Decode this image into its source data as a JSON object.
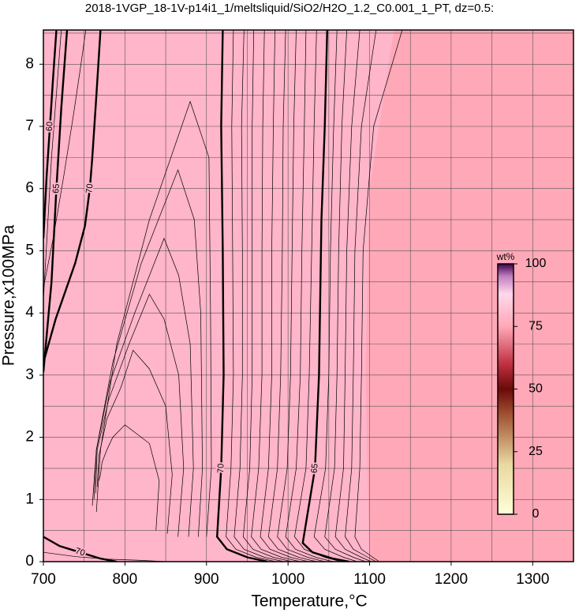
{
  "chart_data": {
    "type": "contour",
    "title": "2018-1VGP_18-1V-p14i1_1/meltsliquid/SiO2/H2O_1.2_C0.001_1_PT, dz=0.5:",
    "xlabel": "Temperature,°C",
    "ylabel": "Pressure,x100MPa",
    "xlim": [
      700,
      1350
    ],
    "ylim": [
      0,
      8.55
    ],
    "xticks": [
      700,
      800,
      900,
      1000,
      1100,
      1200,
      1300
    ],
    "yticks": [
      0,
      1,
      2,
      3,
      4,
      5,
      6,
      7,
      8
    ],
    "xgrid": [
      750,
      800,
      850,
      900,
      950,
      1000,
      1050,
      1100,
      1150,
      1200,
      1250,
      1300
    ],
    "ygrid": [
      0.5,
      1,
      1.5,
      2,
      2.5,
      3,
      3.5,
      4,
      4.5,
      5,
      5.5,
      6,
      6.5,
      7,
      7.5,
      8,
      8.5
    ],
    "background_color": "#ffa8b8",
    "regions": [
      {
        "color": "#ffb5ca",
        "T": [
          700,
          1100,
          1095,
          1100,
          1130,
          700
        ],
        "P": [
          0,
          0,
          3,
          6,
          8.55,
          8.55
        ]
      }
    ],
    "colorbar": {
      "label": "wt%",
      "lim": [
        0,
        100
      ],
      "ticks": [
        0,
        25,
        50,
        75,
        100
      ],
      "stops": [
        [
          0,
          "#ffffd8"
        ],
        [
          20,
          "#e8d8a0"
        ],
        [
          40,
          "#a05030"
        ],
        [
          50,
          "#6a0a0a"
        ],
        [
          60,
          "#c03040"
        ],
        [
          75,
          "#ffa8b8"
        ],
        [
          88,
          "#ffd8ec"
        ],
        [
          95,
          "#c080c0"
        ],
        [
          100,
          "#40004a"
        ]
      ]
    },
    "contours": [
      {
        "level": 70,
        "T": [
          920,
          918,
          920,
          921,
          918,
          913,
          925,
          950,
          975
        ],
        "P": [
          8.55,
          7,
          5,
          3,
          1.5,
          0.4,
          0.2,
          0.07,
          0
        ]
      },
      {
        "level": 69.5,
        "T": [
          933,
          931,
          932,
          933,
          930,
          924,
          936,
          961,
          985
        ],
        "P": [
          8.55,
          7,
          5,
          3,
          1.5,
          0.4,
          0.2,
          0.07,
          0
        ]
      },
      {
        "level": 69,
        "T": [
          946,
          943,
          944,
          944,
          941,
          934,
          946,
          971,
          995
        ],
        "P": [
          8.55,
          7,
          5,
          3,
          1.5,
          0.4,
          0.2,
          0.07,
          0
        ]
      },
      {
        "level": 68.5,
        "T": [
          958,
          956,
          956,
          956,
          953,
          945,
          957,
          982,
          1005
        ],
        "P": [
          8.55,
          7,
          5,
          3,
          1.5,
          0.4,
          0.2,
          0.07,
          0
        ]
      },
      {
        "level": 68,
        "T": [
          971,
          969,
          968,
          968,
          964,
          955,
          967,
          992,
          1015
        ],
        "P": [
          8.55,
          7,
          5,
          3,
          1.5,
          0.4,
          0.2,
          0.07,
          0
        ]
      },
      {
        "level": 67.5,
        "T": [
          984,
          982,
          980,
          980,
          976,
          966,
          978,
          1003,
          1025
        ],
        "P": [
          8.55,
          7,
          5,
          3,
          1.5,
          0.4,
          0.2,
          0.07,
          0
        ]
      },
      {
        "level": 67,
        "T": [
          997,
          994,
          993,
          991,
          987,
          976,
          988,
          1013,
          1035
        ],
        "P": [
          8.55,
          7,
          5,
          3,
          1.5,
          0.4,
          0.2,
          0.07,
          0
        ]
      },
      {
        "level": 66.5,
        "T": [
          1010,
          1007,
          1005,
          1003,
          999,
          987,
          999,
          1024,
          1045
        ],
        "P": [
          8.55,
          7,
          5,
          3,
          1.5,
          0.4,
          0.2,
          0.07,
          0
        ]
      },
      {
        "level": 66,
        "T": [
          1022,
          1020,
          1017,
          1015,
          1010,
          997,
          1009,
          1034,
          1055
        ],
        "P": [
          8.55,
          7,
          5,
          3,
          1.5,
          0.4,
          0.2,
          0.07,
          0
        ]
      },
      {
        "level": 65.5,
        "T": [
          1035,
          1032,
          1029,
          1026,
          1022,
          1008,
          1020,
          1045,
          1065
        ],
        "P": [
          8.55,
          7,
          5,
          3,
          1.5,
          0.4,
          0.2,
          0.07,
          0
        ]
      },
      {
        "level": 65,
        "T": [
          1048,
          1045,
          1041,
          1038,
          1033,
          1018,
          1030,
          1055,
          1075
        ],
        "P": [
          8.55,
          7,
          5.5,
          3,
          1.5,
          0.3,
          0.15,
          0.05,
          0
        ]
      },
      {
        "level": 64.5,
        "T": [
          1060,
          1056,
          1052,
          1050,
          1046,
          1032,
          1045,
          1068,
          1085
        ],
        "P": [
          8.55,
          7,
          5,
          3,
          1.5,
          0.4,
          0.2,
          0.07,
          0
        ]
      },
      {
        "level": 64,
        "T": [
          1072,
          1066,
          1062,
          1060,
          1057,
          1045,
          1058,
          1080,
          1095
        ],
        "P": [
          8.55,
          7,
          5,
          3,
          1.5,
          0.4,
          0.2,
          0.07,
          0
        ]
      },
      {
        "level": 63.5,
        "T": [
          1088,
          1078,
          1072,
          1070,
          1068,
          1058,
          1070,
          1090,
          1102
        ],
        "P": [
          8.55,
          7,
          5,
          3,
          1.5,
          0.4,
          0.2,
          0.07,
          0
        ]
      },
      {
        "level": 63,
        "T": [
          1108,
          1090,
          1082,
          1080,
          1078,
          1070,
          1080,
          1098,
          1108
        ],
        "P": [
          8.55,
          7,
          5,
          3,
          1.5,
          0.4,
          0.2,
          0.07,
          0
        ]
      },
      {
        "level": 62.5,
        "T": [
          1140,
          1105,
          1092,
          1090,
          1088,
          1082,
          1090,
          1104,
          1112
        ],
        "P": [
          8.55,
          7,
          5,
          3,
          1.5,
          0.4,
          0.2,
          0.07,
          0
        ]
      },
      {
        "level": 70.5,
        "T": [
          900,
          906,
          905,
          903,
          880,
          830,
          790,
          770,
          765
        ],
        "P": [
          0.4,
          1.5,
          4,
          6.5,
          7.4,
          5.5,
          3.5,
          1.8,
          0.8
        ]
      },
      {
        "level": 71,
        "T": [
          890,
          895,
          893,
          885,
          865,
          820,
          785,
          765,
          760
        ],
        "P": [
          0.4,
          1.5,
          4,
          5.5,
          6.3,
          4.8,
          3.2,
          1.8,
          0.9
        ]
      },
      {
        "level": 71.5,
        "T": [
          878,
          884,
          880,
          866,
          848,
          812,
          782,
          765,
          762
        ],
        "P": [
          0.4,
          1.5,
          3.5,
          4.6,
          5.2,
          4,
          2.9,
          1.8,
          1
        ]
      },
      {
        "level": 72,
        "T": [
          865,
          872,
          866,
          848,
          830,
          805,
          780,
          766,
          764
        ],
        "P": [
          0.4,
          1.5,
          3,
          3.9,
          4.3,
          3.5,
          2.6,
          1.8,
          1.1
        ]
      },
      {
        "level": 72.5,
        "T": [
          852,
          858,
          850,
          830,
          810,
          795,
          778,
          768,
          766
        ],
        "P": [
          0.45,
          1.4,
          2.5,
          3.1,
          3.4,
          2.8,
          2.3,
          1.7,
          1.2
        ]
      },
      {
        "level": 73,
        "T": [
          838,
          842,
          830,
          800,
          785,
          778,
          772,
          770,
          768
        ],
        "P": [
          0.5,
          1.3,
          1.9,
          2.2,
          2,
          1.8,
          1.6,
          1.4,
          1.3
        ]
      },
      {
        "level": 70,
        "T": [
          700,
          715,
          739,
          751,
          757,
          760,
          765,
          770
        ],
        "P": [
          3.2,
          3.9,
          4.8,
          5.4,
          6,
          6.5,
          7.5,
          8.55
        ]
      },
      {
        "level": 67.5,
        "T": [
          700,
          712,
          725,
          737,
          745,
          752
        ],
        "P": [
          4.4,
          5.2,
          6.2,
          7.2,
          7.9,
          8.55
        ]
      },
      {
        "level": 65,
        "T": [
          700,
          710,
          716,
          722,
          729
        ],
        "P": [
          3.05,
          4.5,
          6,
          7.3,
          8.55
        ]
      },
      {
        "level": 62.5,
        "T": [
          700,
          710,
          722
        ],
        "P": [
          4.2,
          6.5,
          8.55
        ]
      },
      {
        "level": 60,
        "T": [
          700,
          704,
          708,
          712,
          716
        ],
        "P": [
          5.2,
          6.2,
          7,
          7.8,
          8.55
        ]
      },
      {
        "level": 70,
        "T": [
          700,
          720,
          745,
          770,
          790
        ],
        "P": [
          0.4,
          0.25,
          0.15,
          0.05,
          0
        ]
      },
      {
        "level": 69.5,
        "T": [
          700,
          740,
          780,
          820,
          850
        ],
        "P": [
          0.15,
          0.08,
          0.04,
          0.02,
          0
        ]
      }
    ]
  }
}
